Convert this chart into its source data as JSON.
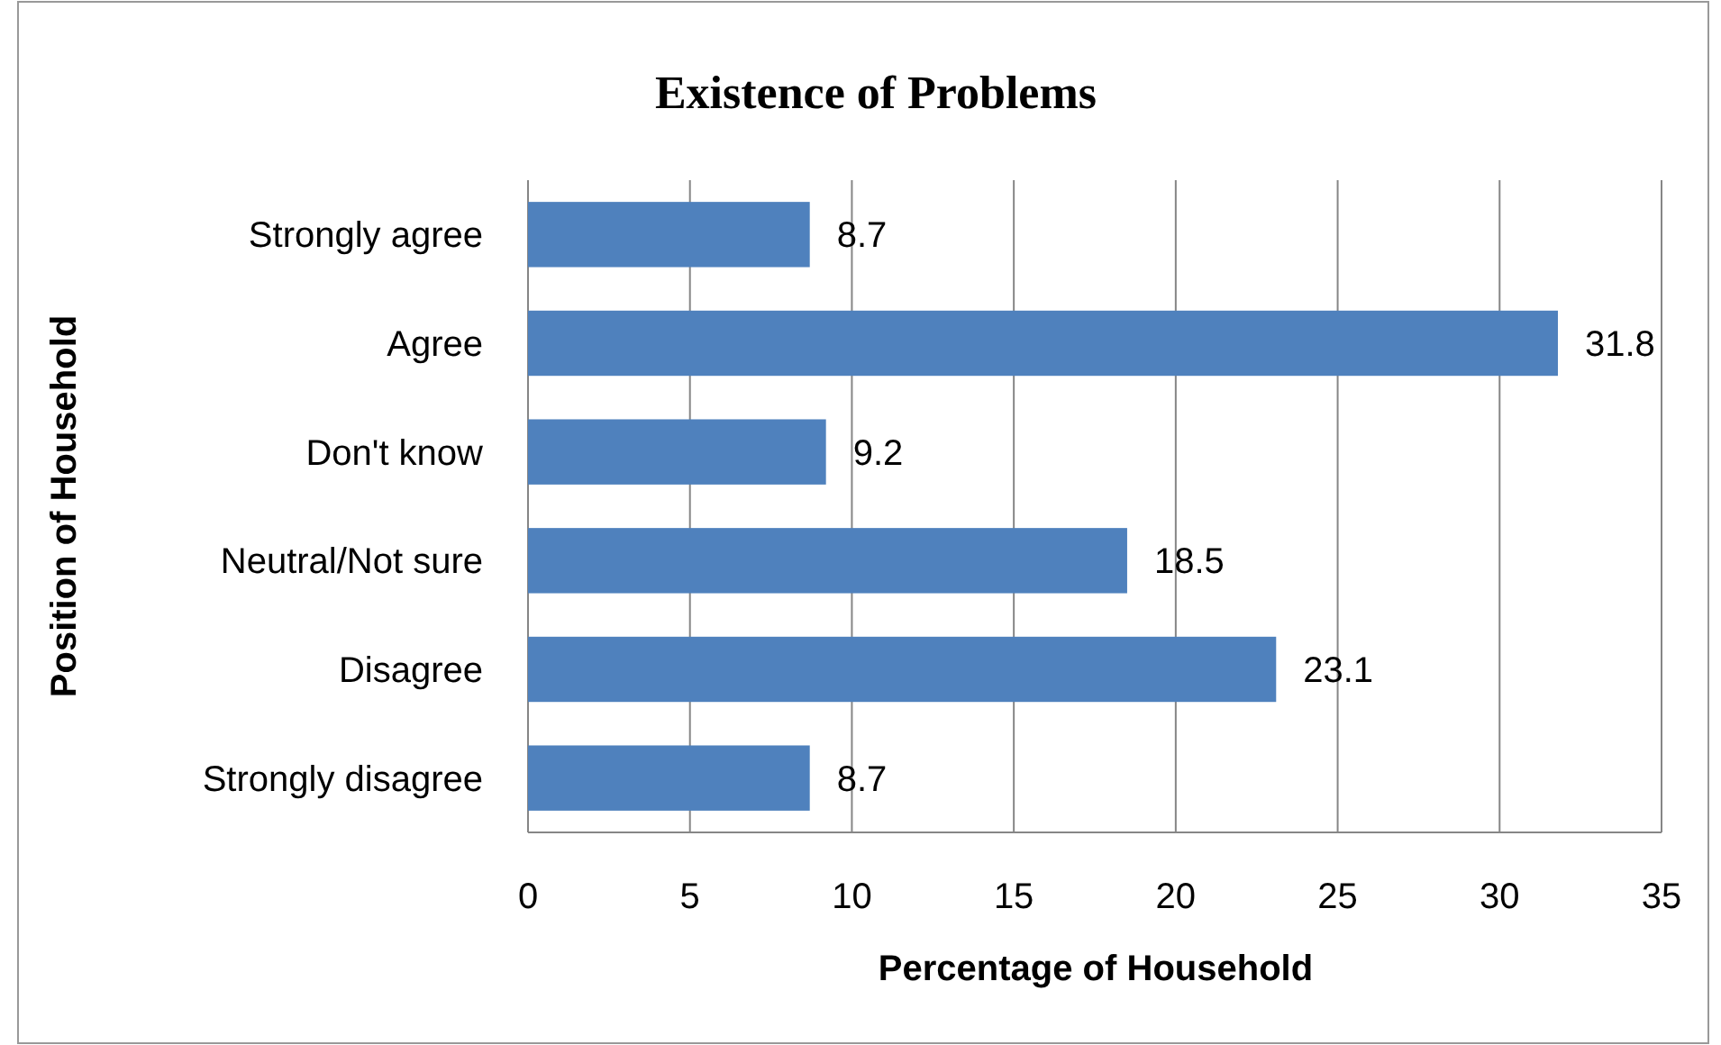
{
  "chart_data": {
    "type": "bar",
    "orientation": "horizontal",
    "title": "Existence of Problems",
    "xlabel": "Percentage of Household",
    "ylabel": "Position of Household",
    "categories": [
      "Strongly agree",
      "Agree",
      "Don't know",
      "Neutral/Not sure",
      "Disagree",
      "Strongly disagree"
    ],
    "values": [
      8.7,
      31.8,
      9.2,
      18.5,
      23.1,
      8.7
    ],
    "color": "#4f81bd",
    "xlim": [
      0,
      35
    ],
    "xticks": [
      0,
      5,
      10,
      15,
      20,
      25,
      30,
      35
    ],
    "grid": "x",
    "data_labels": true
  }
}
